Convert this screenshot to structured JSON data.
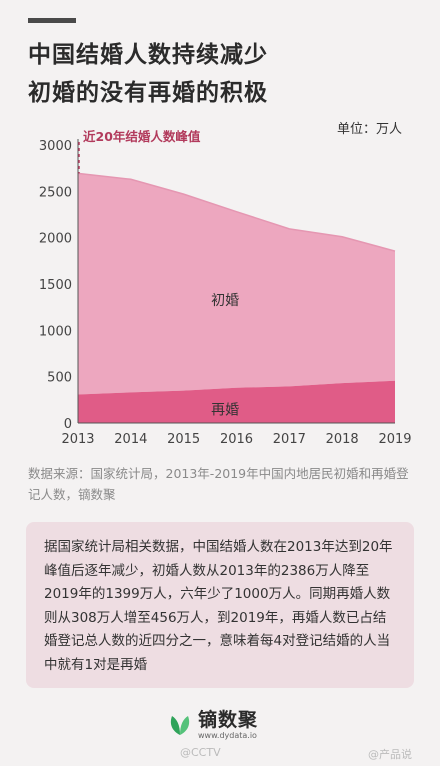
{
  "title_lines": [
    "中国结婚人数持续减少",
    "初婚的没有再婚的积极"
  ],
  "unit_label": "单位：万人",
  "source": "数据来源：国家统计局，2013年-2019年中国内地居民初婚和再婚登记人数，镝数聚",
  "note": "据国家统计局相关数据，中国结婚人数在2013年达到20年峰值后逐年减少，初婚人数从2013年的2386万人降至2019年的1399万人，六年少了1000万人。同期再婚人数则从308万人增至456万人，到2019年，再婚人数已占结婚登记总人数的近四分之一，意味着每4对登记结婚的人当中就有1对是再婚",
  "logo": {
    "name": "镝数聚",
    "url": "www.dydata.io"
  },
  "watermarks": {
    "left": "@CCTV",
    "right": "@产品说"
  },
  "colors": {
    "first_marriage": "#eda7bf",
    "remarriage": "#e05c87",
    "peak_marker": "#b23a5c"
  },
  "chart_data": {
    "type": "area",
    "stacked": true,
    "x": [
      "2013",
      "2014",
      "2015",
      "2016",
      "2017",
      "2018",
      "2019"
    ],
    "series": [
      {
        "name": "再婚",
        "values": [
          308,
          330,
          350,
          380,
          395,
          430,
          456
        ]
      },
      {
        "name": "初婚",
        "values": [
          2386,
          2300,
          2120,
          1900,
          1700,
          1580,
          1399
        ]
      }
    ],
    "ylim": [
      0,
      3000
    ],
    "yticks": [
      0,
      500,
      1000,
      1500,
      2000,
      2500,
      3000
    ],
    "annotation": "近20年结婚人数峰值",
    "grid": false
  }
}
